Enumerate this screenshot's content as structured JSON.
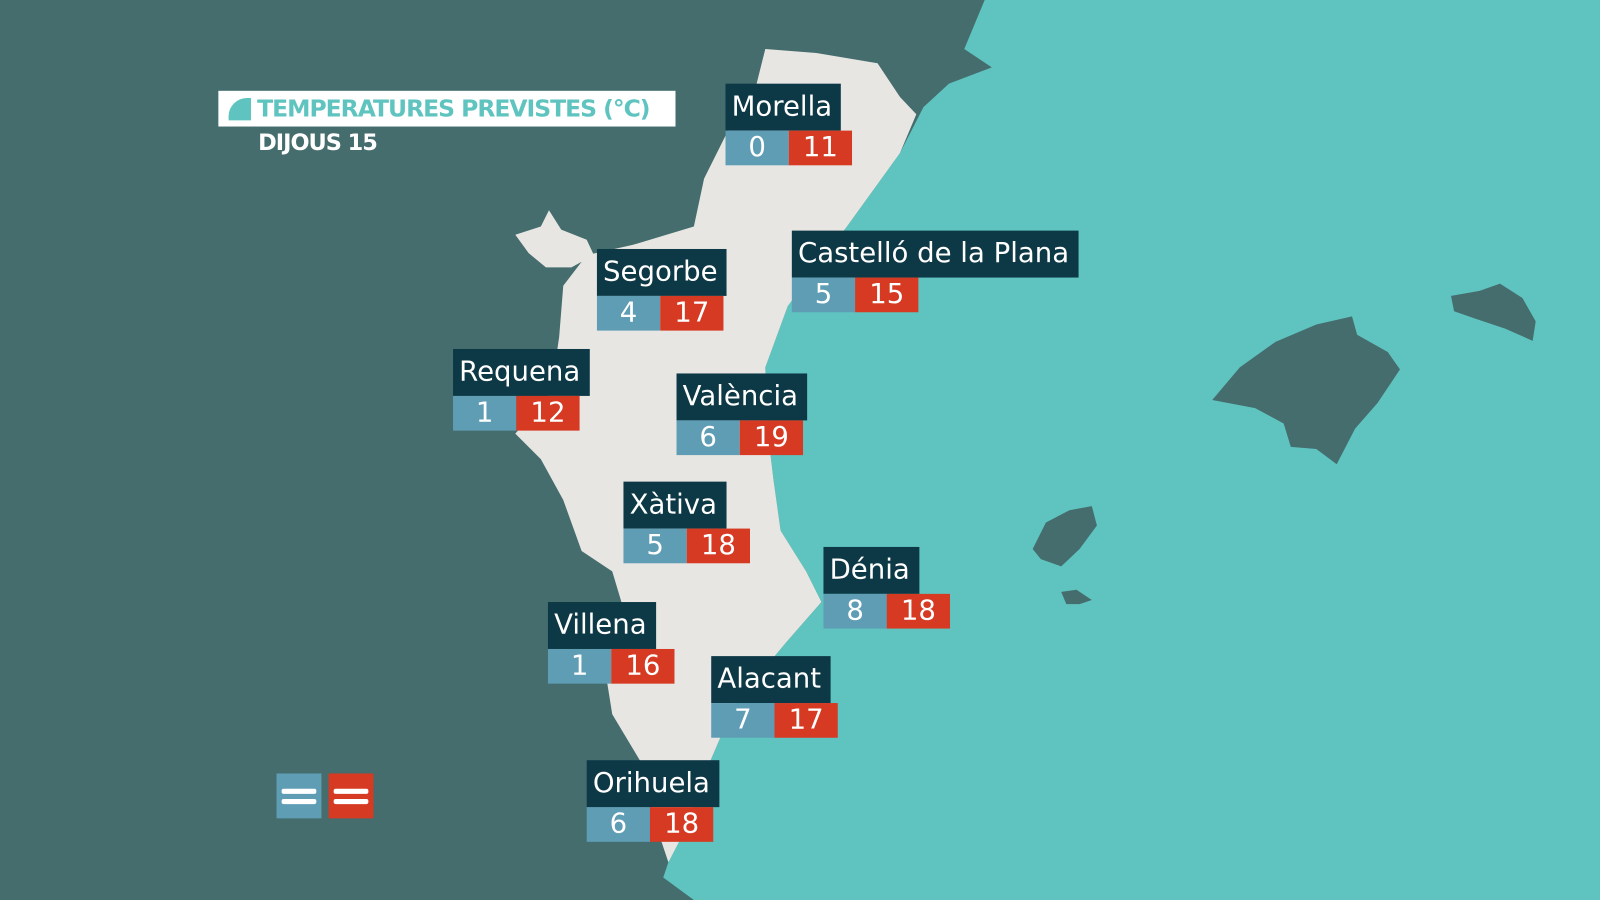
{
  "header": {
    "title": "TEMPERATURES PREVISTES (°C)",
    "day": "DIJOUS 15"
  },
  "colors": {
    "sea": "#5fc4bf",
    "other_land": "#456d6e",
    "region": "#e8e6e3",
    "label_bg": "#0d3845",
    "min": "#5f9db5",
    "max": "#d63a22"
  },
  "legend": [
    {
      "type": "min",
      "icon": "equals-icon",
      "color": "#5f9db5"
    },
    {
      "type": "max",
      "icon": "equals-icon",
      "color": "#d63a22"
    }
  ],
  "cities": [
    {
      "name": "Morella",
      "min": "0",
      "max": "11"
    },
    {
      "name": "Segorbe",
      "min": "4",
      "max": "17"
    },
    {
      "name": "Castelló de la Plana",
      "min": "5",
      "max": "15"
    },
    {
      "name": "Requena",
      "min": "1",
      "max": "12"
    },
    {
      "name": "València",
      "min": "6",
      "max": "19"
    },
    {
      "name": "Xàtiva",
      "min": "5",
      "max": "18"
    },
    {
      "name": "Dénia",
      "min": "8",
      "max": "18"
    },
    {
      "name": "Villena",
      "min": "1",
      "max": "16"
    },
    {
      "name": "Alacant",
      "min": "7",
      "max": "17"
    },
    {
      "name": "Orihuela",
      "min": "6",
      "max": "18"
    }
  ]
}
